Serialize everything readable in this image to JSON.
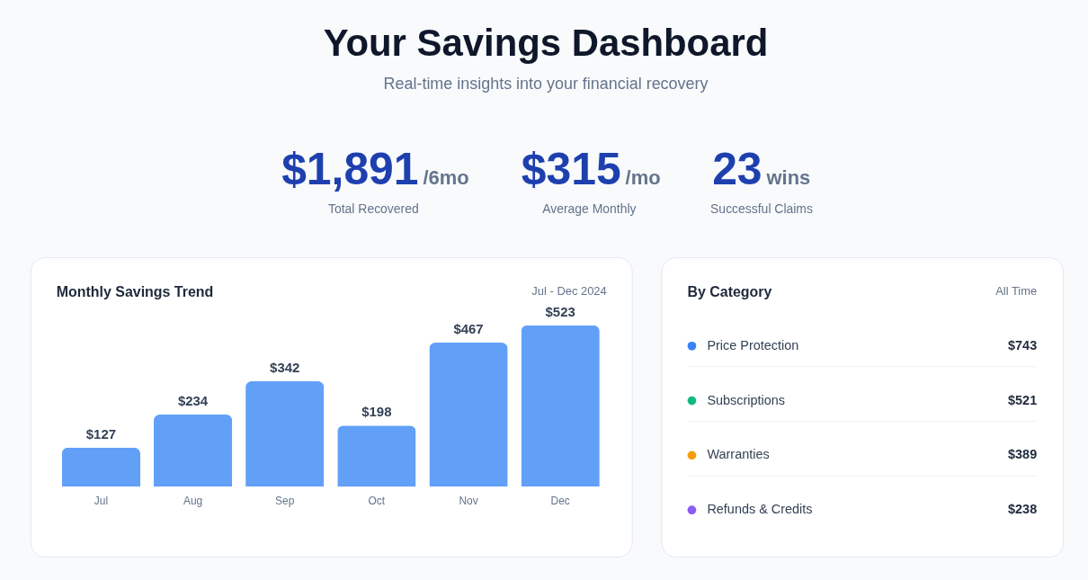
{
  "chart_data": [
    {
      "type": "other",
      "title": "Your Savings Dashboard",
      "subtitle": "Real-time insights into your financial recovery",
      "categories": [
        "Total Recovered",
        "Average Monthly",
        "Successful Claims"
      ],
      "value_labels": [
        "$1,891",
        "$315",
        "23"
      ],
      "annotations": [
        "/6mo",
        "/mo",
        "wins"
      ]
    },
    {
      "type": "bar",
      "title": "Monthly Savings Trend",
      "subtitle": "Jul - Dec 2024",
      "categories": [
        "Jul",
        "Aug",
        "Sep",
        "Oct",
        "Nov",
        "Dec"
      ],
      "values": [
        127,
        234,
        342,
        198,
        467,
        523
      ],
      "value_labels": [
        "$127",
        "$234",
        "$342",
        "$198",
        "$467",
        "$523"
      ],
      "color": "#62a0f8"
    },
    {
      "type": "other",
      "title": "By Category",
      "subtitle": "All Time",
      "categories": [
        "Price Protection",
        "Subscriptions",
        "Warranties",
        "Refunds & Credits"
      ],
      "value_labels": [
        "$743",
        "$521",
        "$389",
        "$238"
      ],
      "colors": [
        "#3b82f6",
        "#10b981",
        "#f59e0b",
        "#8b5cf6"
      ]
    }
  ]
}
